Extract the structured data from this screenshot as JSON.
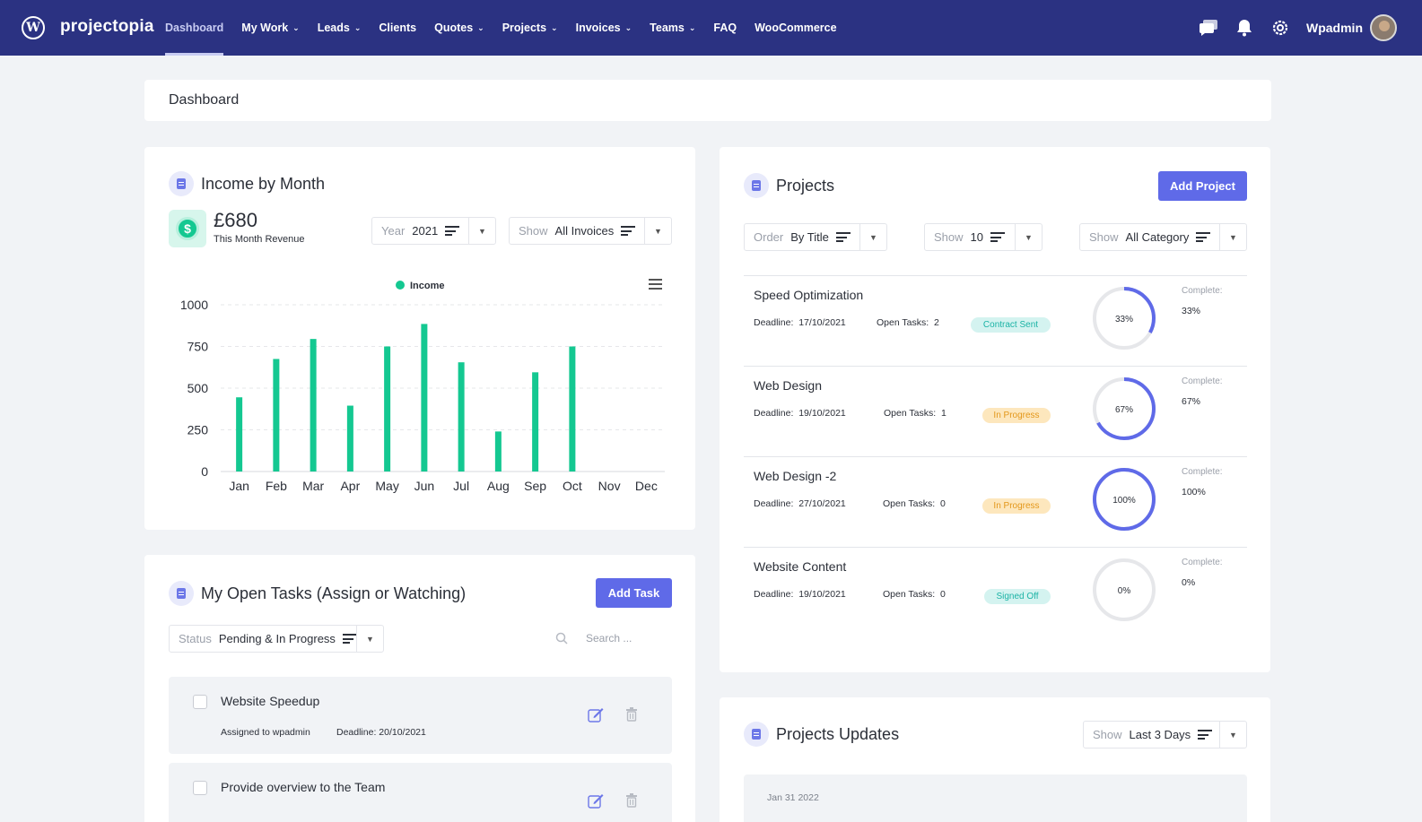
{
  "app": {
    "brand": "projectopia",
    "nav": [
      {
        "label": "Dashboard",
        "caret": false,
        "active": true
      },
      {
        "label": "My Work",
        "caret": true
      },
      {
        "label": "Leads",
        "caret": true
      },
      {
        "label": "Clients",
        "caret": false
      },
      {
        "label": "Quotes",
        "caret": true
      },
      {
        "label": "Projects",
        "caret": true
      },
      {
        "label": "Invoices",
        "caret": true
      },
      {
        "label": "Teams",
        "caret": true
      },
      {
        "label": "FAQ",
        "caret": false
      },
      {
        "label": "WooCommerce",
        "caret": false
      }
    ],
    "user_name": "Wpadmin",
    "icons": [
      "chat-icon",
      "bell-icon",
      "gear-icon"
    ]
  },
  "breadcrumb": "Dashboard",
  "income": {
    "title": "Income by Month",
    "amount": "£680",
    "amount_label": "This Month Revenue",
    "year_label": "Year",
    "year_value": "2021",
    "show_label": "Show",
    "show_value": "All Invoices"
  },
  "chart_data": {
    "type": "bar",
    "categories": [
      "Jan",
      "Feb",
      "Mar",
      "Apr",
      "May",
      "Jun",
      "Jul",
      "Aug",
      "Sep",
      "Oct",
      "Nov",
      "Dec"
    ],
    "series": [
      {
        "name": "Income",
        "values": [
          445,
          675,
          795,
          395,
          750,
          885,
          655,
          240,
          595,
          750,
          0,
          0
        ]
      }
    ],
    "yticks": [
      "0",
      "250",
      "500",
      "750",
      "1000"
    ],
    "ylim": [
      0,
      1000
    ],
    "grid": true,
    "legend": "top-center",
    "color": "#14c891"
  },
  "tasks": {
    "title": "My Open Tasks (Assign or Watching)",
    "add_label": "Add Task",
    "status_label": "Status",
    "status_value": "Pending & In Progress",
    "search_placeholder": "Search ...",
    "items": [
      {
        "title": "Website Speedup",
        "assigned": "Assigned to wpadmin",
        "deadline": "Deadline: 20/10/2021"
      },
      {
        "title": "Provide overview to the Team",
        "assigned": "",
        "deadline": ""
      }
    ]
  },
  "projects": {
    "title": "Projects",
    "add_label": "Add Project",
    "order_label": "Order",
    "order_value": "By Title",
    "show_label": "Show",
    "show_value": "10",
    "category_label": "Show",
    "category_value": "All Category",
    "complete_label": "Complete:",
    "deadline_label": "Deadline:",
    "open_tasks_label": "Open Tasks:",
    "rows": [
      {
        "name": "Speed Optimization",
        "deadline": "17/10/2021",
        "open_tasks": "2",
        "status": "Contract Sent",
        "status_color": "teal",
        "percent_text": "33%",
        "percent": 33
      },
      {
        "name": "Web Design",
        "deadline": "19/10/2021",
        "open_tasks": "1",
        "status": "In Progress",
        "status_color": "amber",
        "percent_text": "67%",
        "percent": 67
      },
      {
        "name": "Web Design -2",
        "deadline": "27/10/2021",
        "open_tasks": "0",
        "status": "In Progress",
        "status_color": "amber",
        "percent_text": "100%",
        "percent": 100
      },
      {
        "name": "Website Content",
        "deadline": "19/10/2021",
        "open_tasks": "0",
        "status": "Signed Off",
        "status_color": "teal",
        "percent_text": "0%",
        "percent": 0
      }
    ]
  },
  "updates": {
    "title": "Projects Updates",
    "show_label": "Show",
    "show_value": "Last 3 Days",
    "first_date": "Jan 31 2022"
  }
}
